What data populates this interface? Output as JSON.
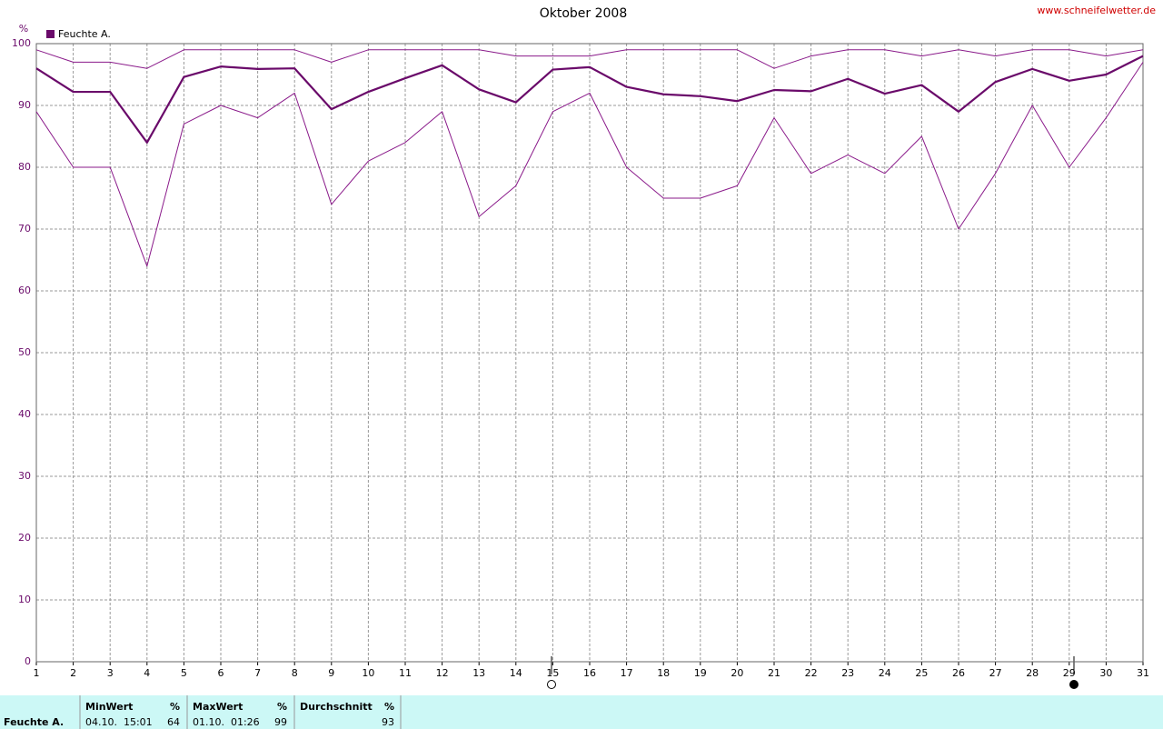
{
  "chart_data": {
    "type": "line",
    "title": "Oktober 2008",
    "source": "www.schneifelwetter.de",
    "y_unit": "%",
    "x": [
      1,
      2,
      3,
      4,
      5,
      6,
      7,
      8,
      9,
      10,
      11,
      12,
      13,
      14,
      15,
      16,
      17,
      18,
      19,
      20,
      21,
      22,
      23,
      24,
      25,
      26,
      27,
      28,
      29,
      30,
      31
    ],
    "xlim": [
      1,
      31
    ],
    "xticks": [
      1,
      2,
      3,
      4,
      5,
      6,
      7,
      8,
      9,
      10,
      11,
      12,
      13,
      14,
      15,
      16,
      17,
      18,
      19,
      20,
      21,
      22,
      23,
      24,
      25,
      26,
      27,
      28,
      29,
      30,
      31
    ],
    "ylim": [
      0,
      100
    ],
    "yticks": [
      0,
      10,
      20,
      30,
      40,
      50,
      60,
      70,
      80,
      90,
      100
    ],
    "grid": true,
    "series": [
      {
        "name": "Feuchte A.",
        "color": "#6a0a6a",
        "line_width": 2.2,
        "values": [
          96,
          92.2,
          92.2,
          84,
          94.6,
          96.3,
          95.9,
          96,
          89.4,
          92.2,
          94.4,
          96.5,
          92.6,
          90.5,
          95.8,
          96.2,
          93,
          91.8,
          91.5,
          90.7,
          92.5,
          92.3,
          94.3,
          91.9,
          93.3,
          89,
          93.8,
          95.9,
          94,
          95,
          98
        ]
      },
      {
        "color": "#8a1a8a",
        "line_width": 1,
        "values": [
          99,
          97,
          97,
          96,
          99,
          99,
          99,
          99,
          97,
          99,
          99,
          99,
          99,
          98,
          98,
          98,
          99,
          99,
          99,
          99,
          96,
          98,
          99,
          99,
          98,
          99,
          98,
          99,
          99,
          98,
          99
        ]
      },
      {
        "color": "#8a1a8a",
        "line_width": 1,
        "values": [
          89,
          80,
          80,
          64,
          87,
          90,
          88,
          92,
          74,
          81,
          84,
          89,
          72,
          77,
          89,
          92,
          80,
          75,
          75,
          77,
          88,
          79,
          82,
          79,
          85,
          70,
          79,
          90,
          80,
          88,
          97
        ]
      }
    ]
  },
  "summary_table": {
    "header": [
      "MinWert",
      "%",
      "MaxWert",
      "%",
      "Durchschnitt",
      "%"
    ],
    "rows": [
      [
        "Feuchte A.",
        "04.10.  15:01",
        64,
        "01.10.  01:26",
        99,
        93
      ]
    ]
  }
}
